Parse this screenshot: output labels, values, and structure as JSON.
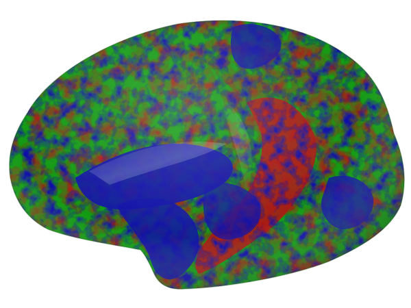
{
  "figure": {
    "subject": "inflated-cortical-surface",
    "view": "lateral",
    "background_color": "#ffffff",
    "colors": {
      "green": "#139a13",
      "red": "#b01414",
      "blue": "#1111a8"
    }
  }
}
